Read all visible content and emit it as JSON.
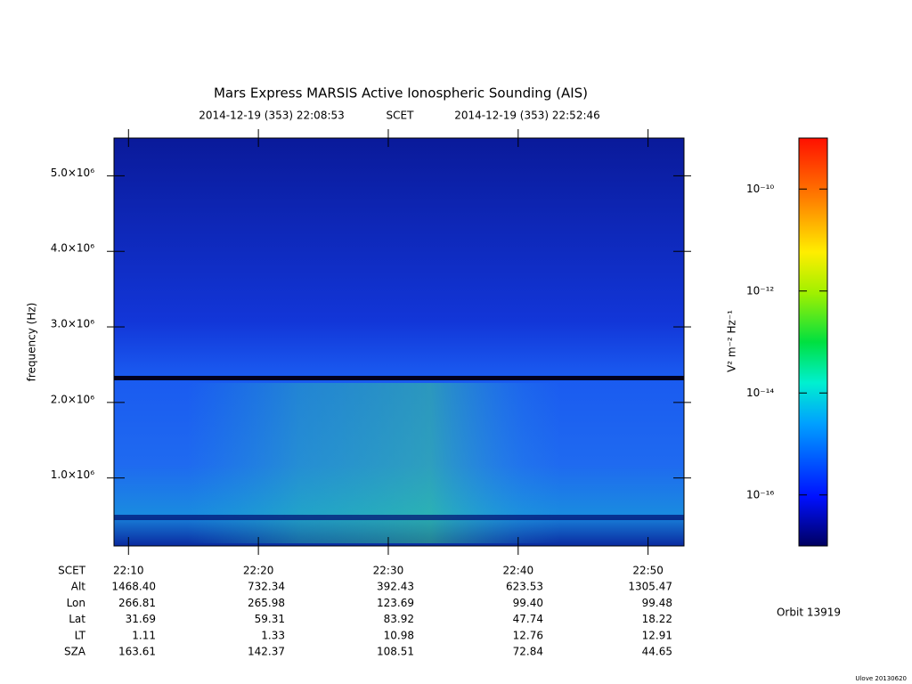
{
  "chart_data": {
    "type": "spectrogram",
    "title": "Mars Express MARSIS Active Ionospheric Sounding (AIS)",
    "start_time": "2014-12-19 (353) 22:08:53",
    "time_label": "SCET",
    "end_time": "2014-12-19 (353) 22:52:46",
    "y_label": "frequency (Hz)",
    "xlim": [
      "22:08:53",
      "22:52:46"
    ],
    "xticks": [
      "22:10",
      "22:20",
      "22:30",
      "22:40",
      "22:50"
    ],
    "ylim": [
      100000,
      5500000
    ],
    "yticks": [
      {
        "value": 1000000,
        "label": "1.0×10⁶"
      },
      {
        "value": 2000000,
        "label": "2.0×10⁶"
      },
      {
        "value": 3000000,
        "label": "3.0×10⁶"
      },
      {
        "value": 4000000,
        "label": "4.0×10⁶"
      },
      {
        "value": 5000000,
        "label": "5.0×10⁶"
      }
    ],
    "colorbar": {
      "label": "V² m⁻² Hz⁻¹",
      "log": true,
      "clim": [
        1e-17,
        1e-09
      ],
      "ticks": [
        {
          "value": 1e-16,
          "label": "10⁻¹⁶"
        },
        {
          "value": 1e-14,
          "label": "10⁻¹⁴"
        },
        {
          "value": 1e-12,
          "label": "10⁻¹²"
        },
        {
          "value": 1e-10,
          "label": "10⁻¹⁰"
        }
      ]
    },
    "ephemeris": {
      "labels": [
        "SCET",
        "Alt",
        "Lon",
        "Lat",
        "LT",
        "SZA"
      ],
      "rows": [
        [
          "1468.40",
          "732.34",
          "392.43",
          "623.53",
          "1305.47"
        ],
        [
          "266.81",
          "265.98",
          "123.69",
          "99.40",
          "99.48"
        ],
        [
          "31.69",
          "59.31",
          "83.92",
          "47.74",
          "18.22"
        ],
        [
          "1.11",
          "1.33",
          "10.98",
          "12.76",
          "12.91"
        ],
        [
          "163.61",
          "142.37",
          "108.51",
          "72.84",
          "44.65"
        ]
      ]
    },
    "orbit": "Orbit 13919",
    "footer": "Ulove 20130620"
  }
}
